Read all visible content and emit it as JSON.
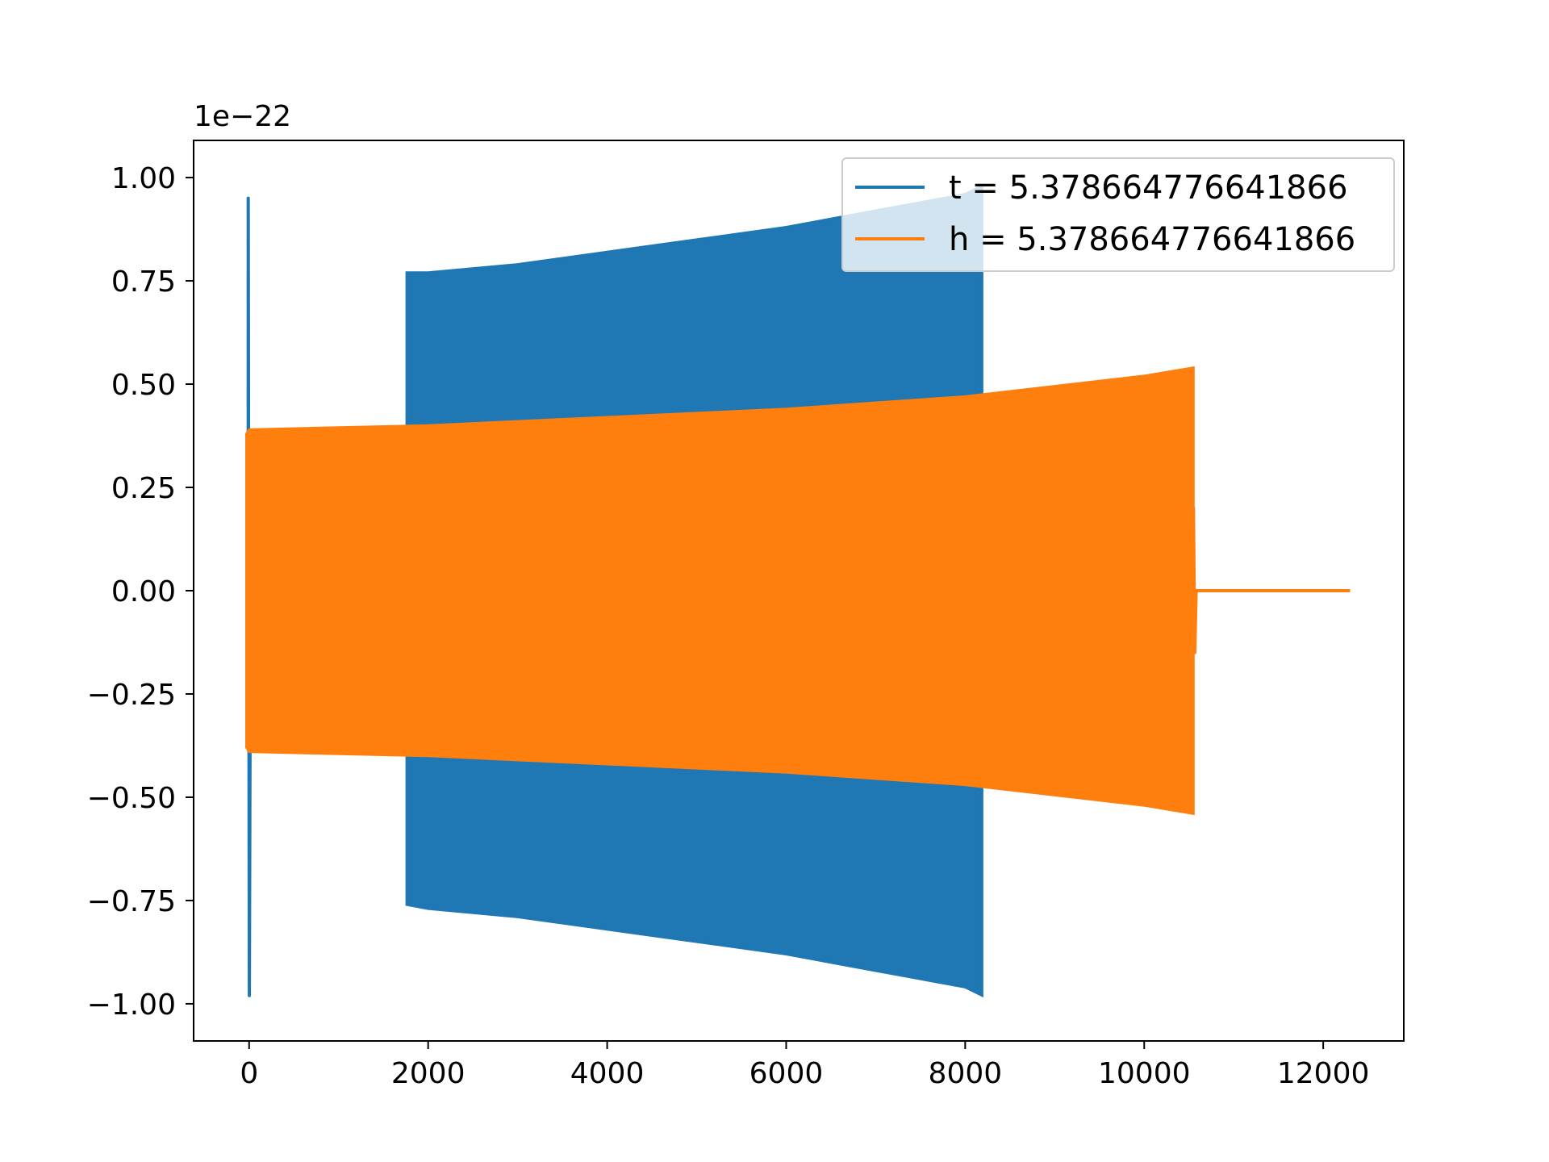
{
  "chart_data": {
    "type": "line",
    "title": "",
    "xlabel": "",
    "ylabel": "",
    "y_offset_label": "1e−22",
    "xlim": [
      -620,
      12900
    ],
    "ylim": [
      -1.09,
      1.09
    ],
    "x_ticks": [
      0,
      2000,
      4000,
      6000,
      8000,
      10000,
      12000
    ],
    "x_tick_labels": [
      "0",
      "2000",
      "4000",
      "6000",
      "8000",
      "10000",
      "12000"
    ],
    "y_ticks": [
      1.0,
      0.75,
      0.5,
      0.25,
      0.0,
      -0.25,
      -0.5,
      -0.75,
      -1.0
    ],
    "y_tick_labels": [
      "1.00",
      "0.75",
      "0.50",
      "0.25",
      "0.00",
      "−0.25",
      "−0.50",
      "−0.75",
      "−1.00"
    ],
    "grid": false,
    "legend_position": "top-right",
    "series": [
      {
        "name": "t = 5.378664776641866",
        "color": "#1f77b4",
        "segments": [
          {
            "kind": "spike",
            "x": [
              -10,
              15
            ],
            "y_max": 0.95,
            "y_min": -0.98
          },
          {
            "kind": "envelope",
            "x": [
              1760,
              2000,
              3000,
              4000,
              5000,
              6000,
              7000,
              8000,
              8190
            ],
            "upper": [
              0.77,
              0.77,
              0.79,
              0.82,
              0.85,
              0.88,
              0.92,
              0.96,
              0.98
            ],
            "lower": [
              -0.76,
              -0.77,
              -0.79,
              -0.82,
              -0.85,
              -0.88,
              -0.92,
              -0.96,
              -0.98
            ]
          }
        ]
      },
      {
        "name": "h = 5.378664776641866",
        "color": "#ff7f0e",
        "segments": [
          {
            "kind": "envelope",
            "x": [
              -30,
              0,
              2000,
              4000,
              6000,
              8000,
              10000,
              10550
            ],
            "upper": [
              0.38,
              0.39,
              0.4,
              0.42,
              0.44,
              0.47,
              0.52,
              0.54
            ],
            "lower": [
              -0.38,
              -0.39,
              -0.4,
              -0.42,
              -0.44,
              -0.47,
              -0.52,
              -0.54
            ]
          },
          {
            "kind": "spike",
            "x": [
              10550,
              10580
            ],
            "y_max": 0.2,
            "y_min": -0.15
          },
          {
            "kind": "flat",
            "x": [
              10550,
              12300
            ],
            "y": 0.0
          }
        ]
      }
    ]
  }
}
